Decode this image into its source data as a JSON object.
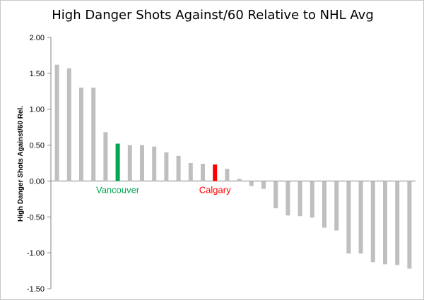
{
  "chart_data": {
    "type": "bar",
    "title": "High Danger Shots Against/60 Relative to NHL Avg",
    "xlabel": "",
    "ylabel": "High Danger Shots Against/60 Rel.",
    "ylim": [
      -1.5,
      2.0
    ],
    "yticks": [
      "2.00",
      "1.50",
      "1.00",
      "0.50",
      "0.00",
      "-0.50",
      "-1.00",
      "-1.50"
    ],
    "ytick_values": [
      2.0,
      1.5,
      1.0,
      0.5,
      0.0,
      -0.5,
      -1.0,
      -1.5
    ],
    "grid": false,
    "legend": "none",
    "values": [
      1.62,
      1.57,
      1.3,
      1.3,
      0.68,
      0.52,
      0.5,
      0.5,
      0.48,
      0.4,
      0.35,
      0.25,
      0.24,
      0.23,
      0.17,
      0.03,
      -0.07,
      -0.11,
      -0.38,
      -0.48,
      -0.49,
      -0.51,
      -0.65,
      -0.69,
      -1.01,
      -1.01,
      -1.13,
      -1.16,
      -1.17,
      -1.22
    ],
    "highlights": [
      {
        "index": 5,
        "label": "Vancouver",
        "color": "#00a850"
      },
      {
        "index": 13,
        "label": "Calgary",
        "color": "#ff0000"
      }
    ],
    "default_color": "#bfbfbf"
  }
}
